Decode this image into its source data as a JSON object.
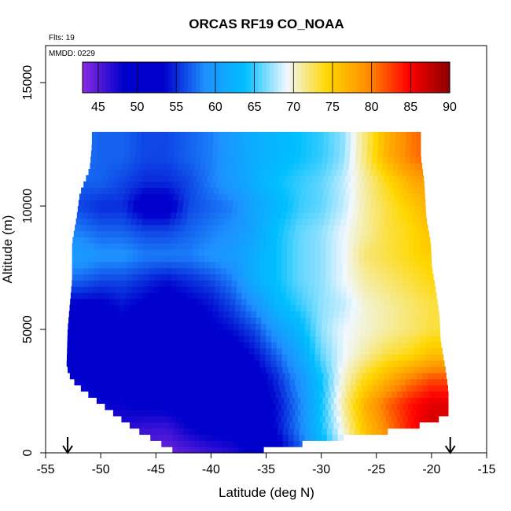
{
  "chart_data": {
    "type": "heatmap",
    "title": "ORCAS RF19 CO_NOAA",
    "xlabel": "Latitude (deg N)",
    "ylabel": "Altitude (m)",
    "xlim": [
      -55,
      -15
    ],
    "ylim": [
      0,
      16500
    ],
    "x_ticks": [
      -55,
      -50,
      -45,
      -40,
      -35,
      -30,
      -25,
      -20,
      -15
    ],
    "y_ticks": [
      0,
      5000,
      10000,
      15000
    ],
    "annotations": {
      "flights": "Flts: 19",
      "date": "MMDD: 0229"
    },
    "colorbar": {
      "range": [
        43,
        90
      ],
      "ticks": [
        45,
        50,
        55,
        60,
        65,
        70,
        75,
        80,
        85,
        90
      ],
      "colors": [
        "#8a2be2",
        "#0000cd",
        "#0000cd",
        "#1e90ff",
        "#00bfff",
        "#f0f8ff",
        "#ffd700",
        "#ff8c00",
        "#ff0000",
        "#8b0000"
      ]
    },
    "markers": {
      "flight_start_lat": -53,
      "flight_end_lat": -18.3
    },
    "envelope": {
      "left_edge": [
        [
          0,
          -43
        ],
        [
          500,
          -45
        ],
        [
          1000,
          -47
        ],
        [
          1500,
          -48.5
        ],
        [
          2000,
          -50
        ],
        [
          2500,
          -51.5
        ],
        [
          3000,
          -52.7
        ],
        [
          3500,
          -53.1
        ],
        [
          5000,
          -53
        ],
        [
          6000,
          -52.8
        ],
        [
          7000,
          -52.6
        ],
        [
          8500,
          -52.6
        ],
        [
          9500,
          -52.2
        ],
        [
          10500,
          -51.9
        ],
        [
          11500,
          -51
        ],
        [
          12500,
          -50.8
        ]
      ],
      "right_edge": [
        [
          0,
          -37
        ],
        [
          500,
          -30
        ],
        [
          1000,
          -22
        ],
        [
          1500,
          -18.5
        ],
        [
          2500,
          -18.5
        ],
        [
          3500,
          -18.8
        ],
        [
          4500,
          -19.2
        ],
        [
          5500,
          -19.3
        ],
        [
          6500,
          -19.6
        ],
        [
          7500,
          -20
        ],
        [
          8500,
          -20.1
        ],
        [
          9500,
          -20.5
        ],
        [
          11000,
          -20.7
        ],
        [
          12000,
          -21
        ],
        [
          12800,
          -21
        ]
      ],
      "top_altitude": 12800
    },
    "profile": [
      {
        "lat": -52,
        "values": [
          45,
          46,
          47,
          48,
          50,
          52,
          53,
          57,
          60,
          58,
          56,
          57,
          58
        ]
      },
      {
        "lat": -50,
        "values": [
          46,
          46,
          48,
          49,
          50,
          52,
          53,
          56,
          59,
          57,
          55,
          57,
          57
        ]
      },
      {
        "lat": -48,
        "values": [
          46,
          47,
          48,
          49,
          51,
          53,
          54,
          56,
          59,
          57,
          55,
          56,
          57
        ]
      },
      {
        "lat": -46,
        "values": [
          45,
          46,
          49,
          50,
          51,
          52,
          53,
          55,
          58,
          56,
          52,
          55,
          56
        ]
      },
      {
        "lat": -44,
        "values": [
          44,
          46,
          49,
          51,
          51,
          52,
          52,
          54,
          58,
          56,
          52,
          55,
          56
        ]
      },
      {
        "lat": -42,
        "values": [
          45,
          48,
          50,
          51,
          52,
          53,
          53,
          55,
          58,
          57,
          56,
          56,
          57
        ]
      },
      {
        "lat": -40,
        "values": [
          46,
          49,
          50,
          51,
          52,
          53,
          54,
          56,
          59,
          58,
          57,
          58,
          58
        ]
      },
      {
        "lat": -38,
        "values": [
          47,
          49,
          50,
          51,
          52,
          54,
          56,
          58,
          60,
          59,
          58,
          60,
          60
        ]
      },
      {
        "lat": -36,
        "values": [
          49,
          50,
          51,
          52,
          54,
          56,
          59,
          62,
          62,
          61,
          61,
          62,
          62
        ]
      },
      {
        "lat": -34,
        "values": [
          52,
          54,
          54,
          55,
          57,
          60,
          63,
          64,
          64,
          64,
          63,
          64,
          63
        ]
      },
      {
        "lat": -32,
        "values": [
          56,
          58,
          58,
          59,
          61,
          63,
          65,
          66,
          66,
          66,
          65,
          65,
          64
        ]
      },
      {
        "lat": -30,
        "values": [
          62,
          64,
          64,
          64,
          66,
          67,
          67,
          67,
          67,
          67,
          66,
          66,
          65
        ]
      },
      {
        "lat": -28,
        "values": [
          68,
          70,
          71,
          70,
          69,
          69,
          68,
          69,
          69,
          69,
          68,
          68,
          67
        ]
      },
      {
        "lat": -26,
        "values": [
          74,
          76,
          77,
          74,
          71,
          70,
          70,
          71,
          72,
          71,
          71,
          71,
          72
        ]
      },
      {
        "lat": -24,
        "values": [
          78,
          80,
          81,
          77,
          73,
          71,
          71,
          72,
          73,
          73,
          73,
          74,
          77
        ]
      },
      {
        "lat": -22,
        "values": [
          82,
          84,
          84,
          80,
          74,
          72,
          72,
          73,
          74,
          74,
          75,
          77,
          80
        ]
      },
      {
        "lat": -20,
        "values": [
          85,
          87,
          86,
          82,
          76,
          73,
          73,
          74,
          75,
          76,
          77,
          79,
          82
        ]
      }
    ]
  }
}
